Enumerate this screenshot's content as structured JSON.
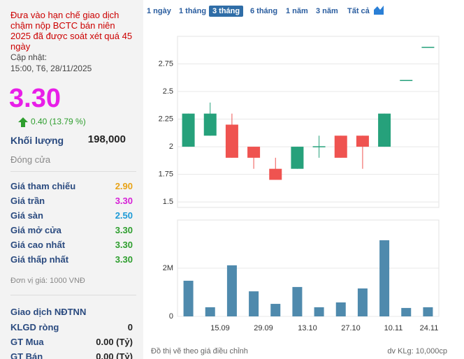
{
  "sidebar": {
    "notice": "Đưa vào hạn chế giao dịch chậm nộp BCTC bán niên 2025 đã được soát xét quá 45 ngày",
    "updated_label": "Cập nhật:",
    "updated": "15:00, T6, 28/11/2025",
    "price": "3.30",
    "change": "0.40 (13.79 %)",
    "volume_label": "Khối lượng",
    "volume": "198,000",
    "status": "Đóng cửa",
    "rows": [
      {
        "label": "Giá tham chiếu",
        "value": "2.90",
        "color": "#e8a317"
      },
      {
        "label": "Giá trần",
        "value": "3.30",
        "color": "#d61fd6"
      },
      {
        "label": "Giá sàn",
        "value": "2.50",
        "color": "#1c9ad6"
      },
      {
        "label": "Giá mở cửa",
        "value": "3.30",
        "color": "#2e9e2e"
      },
      {
        "label": "Giá cao nhất",
        "value": "3.30",
        "color": "#2e9e2e"
      },
      {
        "label": "Giá thấp nhất",
        "value": "3.30",
        "color": "#2e9e2e"
      }
    ],
    "unit": "Đơn vị giá: 1000 VNĐ",
    "foreign_title": "Giao dịch NĐTNN",
    "foreign_rows": [
      {
        "label": "KLGD ròng",
        "value": "0"
      },
      {
        "label": "GT Mua",
        "value": "0.00 (Tỷ)"
      },
      {
        "label": "GT Bán",
        "value": "0.00 (Tỷ)"
      }
    ]
  },
  "toolbar": {
    "ranges": [
      "1 ngày",
      "1 tháng",
      "3 tháng",
      "6 tháng",
      "1 năm",
      "3 năm",
      "Tất cả"
    ],
    "selected": 2
  },
  "x_labels": [
    "15.09",
    "29.09",
    "13.10",
    "27.10",
    "10.11",
    "24.11"
  ],
  "footer": {
    "left": "Đồ thị vẽ theo giá điều chỉnh",
    "right": "dv KLg: 10,000cp"
  },
  "chart_data": [
    {
      "type": "candlestick",
      "open": [
        2.0,
        2.1,
        2.2,
        2.0,
        1.8,
        1.8,
        2.0,
        2.1,
        2.1,
        2.0,
        2.6,
        2.9
      ],
      "high": [
        2.3,
        2.4,
        2.3,
        2.0,
        1.9,
        2.0,
        2.1,
        2.1,
        2.1,
        2.3,
        2.6,
        2.9
      ],
      "low": [
        2.0,
        2.1,
        1.9,
        1.8,
        1.7,
        1.8,
        1.9,
        1.9,
        1.8,
        2.0,
        2.6,
        2.9
      ],
      "close": [
        2.3,
        2.3,
        1.9,
        1.9,
        1.7,
        2.0,
        2.0,
        1.9,
        2.0,
        2.3,
        2.6,
        2.9
      ],
      "up_color": "#26a17b",
      "down_color": "#ef5350",
      "ylim": [
        1.45,
        3.0
      ],
      "yticks": [
        1.5,
        1.75,
        2,
        2.25,
        2.5,
        2.75
      ],
      "grid": true
    },
    {
      "type": "bar",
      "values": [
        1480000,
        380000,
        2120000,
        1040000,
        520000,
        1220000,
        380000,
        580000,
        1160000,
        3160000,
        350000,
        380000
      ],
      "color": "#4f8aad",
      "ylim": [
        0,
        4000000
      ],
      "yticks": [
        0,
        {
          "value": 2000000,
          "label": "2M"
        }
      ],
      "grid": true
    }
  ]
}
